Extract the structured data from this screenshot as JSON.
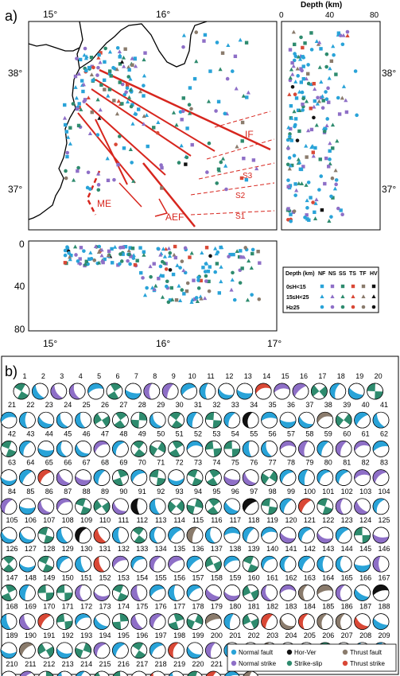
{
  "panel_a": {
    "label": "a)",
    "depth_axis_title": "Depth (km)",
    "lon_ticks_top": [
      "15°",
      "16°"
    ],
    "lon_ticks_bottom": [
      "15°",
      "16°",
      "17°"
    ],
    "lat_ticks_left": [
      "38°",
      "37°"
    ],
    "lat_ticks_right": [
      "38°",
      "37°"
    ],
    "depth_ticks_top": [
      "0",
      "40",
      "80"
    ],
    "depth_ticks_left": [
      "0",
      "40",
      "80"
    ],
    "fault_labels": [
      "IF",
      "S3",
      "S2",
      "S1",
      "ME",
      "AEF"
    ],
    "legend": {
      "header": "Depth (km)",
      "columns": [
        "NF",
        "NS",
        "SS",
        "TS",
        "TF",
        "HV"
      ],
      "rows": [
        "0≤H<15",
        "15≤H<25",
        "H≥25"
      ],
      "colors": {
        "NF": "#29a3d8",
        "NS": "#8e6fc7",
        "SS": "#2e8b6e",
        "TS": "#d94836",
        "TF": "#8a7b6c",
        "HV": "#111111"
      }
    }
  },
  "panel_b": {
    "label": "b)",
    "mechanisms_count": 223,
    "special": {
      "14": "TS",
      "34": "HV",
      "38": "TF",
      "65": "TS",
      "91": "HV",
      "97": "HV",
      "100": "TS",
      "109": "HV",
      "110": "TS",
      "115": "TF",
      "131": "TS",
      "163": "TF",
      "164": "TF",
      "167": "HV",
      "170": "TS",
      "179": "TF",
      "182": "TS",
      "183": "TF",
      "184": "TS",
      "185": "TF",
      "186": "TF",
      "187": "TS",
      "190": "TF",
      "198": "TS",
      "202": "TF",
      "203": "TF",
      "204": "HV",
      "218": "TS",
      "221": "TS",
      "223": "TF"
    },
    "legend": [
      {
        "label": "Normal fault",
        "color": "#29a3d8"
      },
      {
        "label": "Hor-Ver",
        "color": "#111111"
      },
      {
        "label": "Thrust fault",
        "color": "#8a7b6c"
      },
      {
        "label": "Normal strike",
        "color": "#8e6fc7"
      },
      {
        "label": "Strike-slip",
        "color": "#2e8b6e"
      },
      {
        "label": "Thrust strike",
        "color": "#d94836"
      }
    ]
  }
}
